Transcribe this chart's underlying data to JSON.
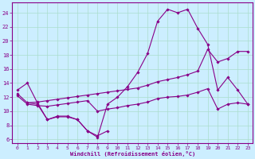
{
  "xlabel": "Windchill (Refroidissement éolien,°C)",
  "background_color": "#cceeff",
  "grid_color": "#aaddcc",
  "line_color": "#880088",
  "x_ticks": [
    0,
    1,
    2,
    3,
    4,
    5,
    6,
    7,
    8,
    9,
    10,
    11,
    12,
    13,
    14,
    15,
    16,
    17,
    18,
    19,
    20,
    21,
    22,
    23
  ],
  "y_ticks": [
    6,
    8,
    10,
    12,
    14,
    16,
    18,
    20,
    22,
    24
  ],
  "xlim": [
    -0.5,
    23.5
  ],
  "ylim": [
    5.5,
    25.5
  ],
  "line1_x": [
    0,
    1,
    2,
    3,
    4,
    5,
    6,
    7,
    8,
    9,
    10,
    11,
    12,
    13,
    14,
    15,
    16,
    17,
    18,
    19,
    20,
    21,
    22,
    23
  ],
  "line1_y": [
    13.0,
    14.0,
    11.2,
    8.8,
    9.3,
    9.3,
    8.8,
    7.2,
    6.3,
    11.0,
    12.0,
    13.5,
    15.5,
    18.2,
    22.8,
    24.5,
    24.0,
    24.5,
    21.8,
    19.5,
    13.0,
    14.8,
    13.0,
    11.0
  ],
  "line2_x": [
    0,
    1,
    2,
    3,
    4,
    5,
    6,
    7,
    8,
    9,
    10,
    11,
    12,
    13,
    14,
    15,
    16,
    17,
    18,
    19,
    20,
    21,
    22,
    23
  ],
  "line2_y": [
    12.5,
    11.2,
    11.3,
    11.5,
    11.7,
    11.9,
    12.1,
    12.3,
    12.5,
    12.7,
    12.9,
    13.1,
    13.3,
    13.7,
    14.2,
    14.5,
    14.8,
    15.2,
    15.7,
    18.8,
    17.0,
    17.5,
    18.5,
    18.5
  ],
  "line3_x": [
    0,
    1,
    2,
    3,
    4,
    5,
    6,
    7,
    8,
    9,
    10,
    11,
    12,
    13,
    14,
    15,
    16,
    17,
    18,
    19,
    20,
    21,
    22,
    23
  ],
  "line3_y": [
    12.2,
    11.0,
    10.8,
    10.7,
    10.9,
    11.1,
    11.3,
    11.5,
    10.0,
    10.3,
    10.5,
    10.8,
    11.0,
    11.3,
    11.8,
    12.0,
    12.1,
    12.3,
    12.7,
    13.2,
    10.3,
    11.0,
    11.2,
    11.0
  ],
  "line4_x": [
    1,
    2,
    3,
    4,
    5,
    6,
    7,
    8,
    9
  ],
  "line4_y": [
    11.2,
    11.0,
    8.8,
    9.2,
    9.2,
    8.8,
    7.2,
    6.5,
    7.2
  ]
}
